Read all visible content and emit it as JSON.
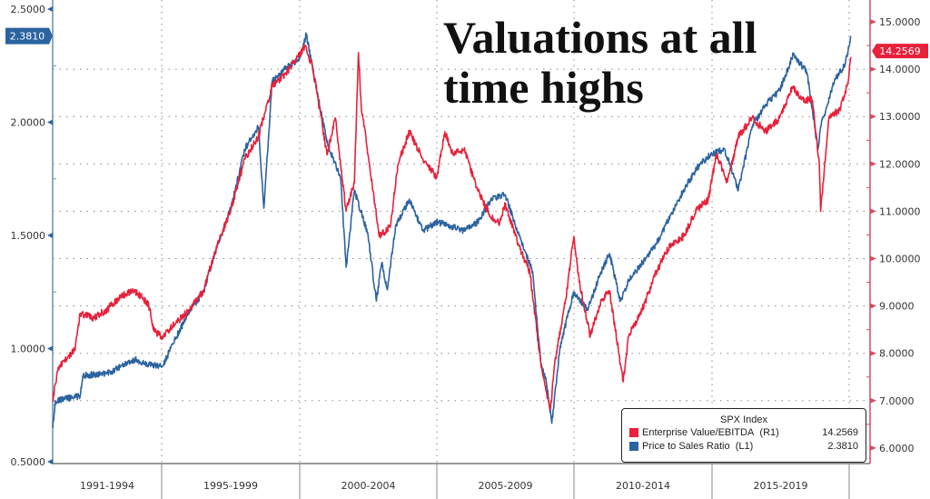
{
  "chart_data": {
    "type": "line",
    "title": "Valuations at all time highs",
    "legend": {
      "title": "SPX Index",
      "placement": "bottom-right",
      "entries": [
        {
          "name": "Enterprise Value/EBITDA",
          "axis": "(R1)",
          "last": "14.2569",
          "color": "#e8203a"
        },
        {
          "name": "Price to Sales Ratio",
          "axis": "(L1)",
          "last": "2.3810",
          "color": "#2b63a0"
        }
      ]
    },
    "x_period_labels": [
      "1991-1994",
      "1995-1999",
      "2000-2004",
      "2005-2009",
      "2010-2014",
      "2015-2019"
    ],
    "xlim": [
      1991,
      2020.2
    ],
    "y_left": {
      "ticks": [
        "2.5000",
        "2.0000",
        "1.5000",
        "1.0000",
        "0.5000"
      ],
      "range": [
        0.5,
        2.5
      ],
      "last_value_flag": "2.3810",
      "color": "#2b63a0"
    },
    "y_right": {
      "ticks": [
        "15.0000",
        "14.0000",
        "13.0000",
        "12.0000",
        "11.0000",
        "10.0000",
        "9.0000",
        "8.0000",
        "7.0000",
        "6.0000"
      ],
      "range": [
        6,
        15
      ],
      "last_value_flag": "14.2569",
      "color": "#e8203a"
    },
    "grid": true,
    "series": [
      {
        "name": "Enterprise Value/EBITDA",
        "axis": "right",
        "color": "#e8203a",
        "x": [
          1991.0,
          1991.2,
          1991.8,
          1992.0,
          1992.5,
          1993.0,
          1993.5,
          1994.0,
          1994.5,
          1994.7,
          1995.0,
          1995.5,
          1996.0,
          1996.5,
          1997.0,
          1997.5,
          1998.0,
          1998.5,
          1999.0,
          1999.5,
          2000.0,
          2000.2,
          2000.5,
          2001.0,
          2001.3,
          2001.7,
          2002.0,
          2002.15,
          2002.25,
          2002.5,
          2002.9,
          2003.3,
          2003.6,
          2004.0,
          2004.5,
          2005.0,
          2005.3,
          2005.6,
          2006.0,
          2006.5,
          2007.0,
          2007.3,
          2007.5,
          2008.0,
          2008.4,
          2008.8,
          2009.0,
          2009.15,
          2009.3,
          2009.7,
          2010.0,
          2010.2,
          2010.6,
          2011.0,
          2011.3,
          2011.7,
          2011.8,
          2012.0,
          2012.5,
          2013.0,
          2013.5,
          2014.0,
          2014.5,
          2014.9,
          2015.2,
          2015.6,
          2016.0,
          2016.5,
          2017.0,
          2017.5,
          2018.0,
          2018.3,
          2018.7,
          2018.95,
          2019.0,
          2019.3,
          2019.7,
          2020.0,
          2020.1
        ],
        "y": [
          7.0,
          7.7,
          8.07,
          8.84,
          8.74,
          8.93,
          9.22,
          9.32,
          9.03,
          8.46,
          8.36,
          8.65,
          8.93,
          9.32,
          10.28,
          11.05,
          12.1,
          12.58,
          13.64,
          13.9,
          14.3,
          14.5,
          14.0,
          12.2,
          12.97,
          11.0,
          11.6,
          14.35,
          13.2,
          12.2,
          10.47,
          10.66,
          12.0,
          12.68,
          12.1,
          11.7,
          12.68,
          12.2,
          12.3,
          11.43,
          10.85,
          10.76,
          11.14,
          10.28,
          9.7,
          7.78,
          7.2,
          6.8,
          7.78,
          9.13,
          10.47,
          9.5,
          8.36,
          9.13,
          9.32,
          7.78,
          7.4,
          8.36,
          8.93,
          9.7,
          10.28,
          10.47,
          11.05,
          11.24,
          12.2,
          11.62,
          12.58,
          12.97,
          12.68,
          12.97,
          13.64,
          13.35,
          13.35,
          12.0,
          11.0,
          12.97,
          13.16,
          13.73,
          14.2569
        ]
      },
      {
        "name": "Price to Sales Ratio",
        "axis": "left",
        "color": "#2b63a0",
        "x": [
          1991.0,
          1991.1,
          1992.0,
          1992.1,
          1993.0,
          1994.0,
          1994.5,
          1995.0,
          1995.5,
          1996.0,
          1996.5,
          1997.0,
          1997.5,
          1998.0,
          1998.5,
          1998.7,
          1999.0,
          1999.5,
          2000.0,
          2000.25,
          2000.5,
          2001.0,
          2001.5,
          2001.7,
          2002.0,
          2002.5,
          2002.8,
          2003.0,
          2003.2,
          2003.5,
          2004.0,
          2004.5,
          2005.0,
          2005.5,
          2006.0,
          2006.5,
          2007.0,
          2007.5,
          2008.0,
          2008.5,
          2008.8,
          2009.0,
          2009.2,
          2009.5,
          2010.0,
          2010.5,
          2011.0,
          2011.3,
          2011.7,
          2012.0,
          2012.5,
          2013.0,
          2013.5,
          2014.0,
          2014.5,
          2015.0,
          2015.5,
          2016.0,
          2016.5,
          2017.0,
          2017.5,
          2018.0,
          2018.5,
          2018.9,
          2019.0,
          2019.5,
          2019.9,
          2020.1
        ],
        "y": [
          0.65,
          0.77,
          0.79,
          0.88,
          0.89,
          0.95,
          0.93,
          0.92,
          1.05,
          1.17,
          1.25,
          1.46,
          1.62,
          1.88,
          1.98,
          1.62,
          2.18,
          2.24,
          2.28,
          2.39,
          2.22,
          1.91,
          1.75,
          1.36,
          1.7,
          1.5,
          1.21,
          1.38,
          1.26,
          1.54,
          1.66,
          1.52,
          1.56,
          1.54,
          1.52,
          1.56,
          1.66,
          1.68,
          1.5,
          1.34,
          0.93,
          0.85,
          0.67,
          1.01,
          1.25,
          1.17,
          1.34,
          1.42,
          1.21,
          1.3,
          1.38,
          1.46,
          1.58,
          1.7,
          1.8,
          1.86,
          1.88,
          1.7,
          1.98,
          2.08,
          2.14,
          2.3,
          2.22,
          1.88,
          1.98,
          2.18,
          2.26,
          2.381
        ]
      }
    ]
  }
}
